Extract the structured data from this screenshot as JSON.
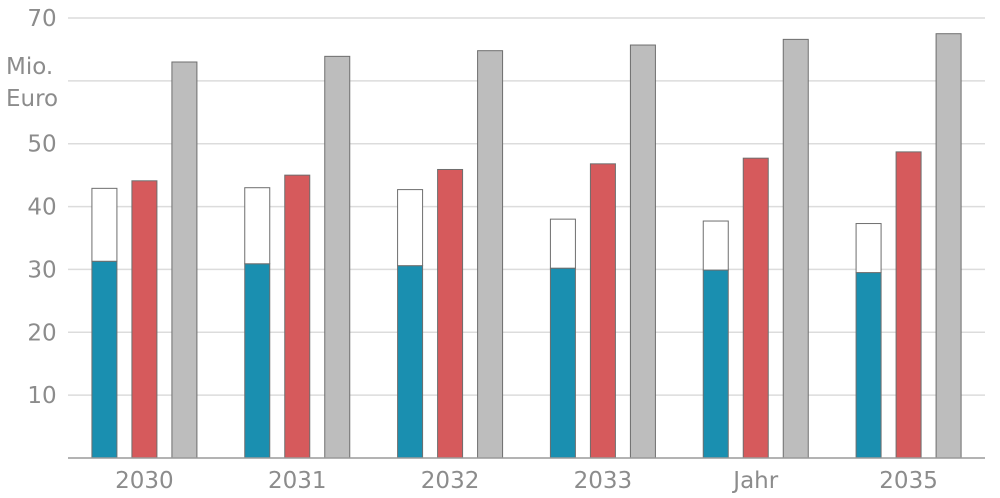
{
  "chart_data": {
    "type": "bar",
    "title": "",
    "xlabel": "",
    "ylabel_lines": [
      "Mio.",
      "Euro"
    ],
    "categories": [
      "2030",
      "2031",
      "2032",
      "2033",
      "Jahr",
      "2035"
    ],
    "ylim": [
      0,
      70
    ],
    "yticks": [
      10,
      20,
      30,
      40,
      50,
      70
    ],
    "grid": true,
    "series": [
      {
        "stack": [
          {
            "values": [
              31.3,
              30.9,
              30.6,
              30.2,
              29.9,
              29.5
            ],
            "color": "#1a8fb0"
          },
          {
            "values": [
              11.6,
              12.1,
              12.1,
              7.8,
              7.8,
              7.8
            ],
            "color": "#ffffff"
          }
        ]
      },
      {
        "values": [
          44.1,
          45.0,
          45.9,
          46.8,
          47.7,
          48.7
        ],
        "color": "#d65a5c"
      },
      {
        "values": [
          63.0,
          63.9,
          64.8,
          65.7,
          66.6,
          67.5
        ],
        "color": "#bdbdbd"
      }
    ]
  }
}
